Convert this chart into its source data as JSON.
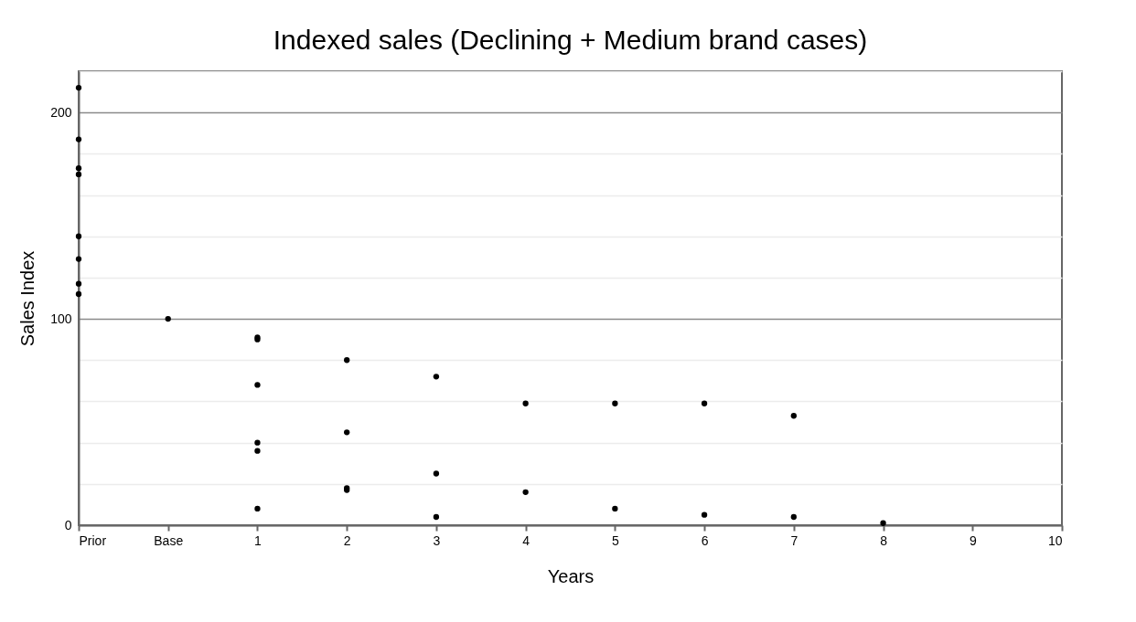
{
  "chart_data": {
    "type": "scatter",
    "title": "Indexed sales (Declining + Medium brand cases)",
    "xlabel": "Years",
    "ylabel": "Sales Index",
    "series": [
      {
        "color": "#000000",
        "x": [
          -1,
          -1,
          -1,
          -1,
          -1,
          -1,
          -1,
          -1,
          0,
          1,
          1,
          1,
          1,
          1,
          1,
          2,
          2,
          2,
          2,
          3,
          3,
          3,
          4,
          4,
          5,
          5,
          6,
          6,
          7,
          7,
          8
        ],
        "values": [
          212,
          187,
          173,
          170,
          140,
          129,
          117,
          112,
          100,
          91,
          90,
          68,
          40,
          36,
          8,
          80,
          45,
          18,
          17,
          72,
          25,
          4,
          59,
          16,
          59,
          8,
          59,
          5,
          53,
          4,
          1
        ]
      }
    ],
    "xlim": [
      -1,
      10
    ],
    "xticks": [
      {
        "value": -1,
        "label": "Prior"
      },
      {
        "value": 0,
        "label": "Base"
      },
      1,
      2,
      3,
      4,
      5,
      6,
      7,
      8,
      9,
      10
    ],
    "ylim": [
      0,
      220
    ],
    "yticks": [
      0,
      {
        "value": 20,
        "label": null
      },
      {
        "value": 40,
        "label": null
      },
      {
        "value": 60,
        "label": null
      },
      {
        "value": 80,
        "label": null
      },
      100,
      {
        "value": 120,
        "label": null
      },
      {
        "value": 140,
        "label": null
      },
      {
        "value": 160,
        "label": null
      },
      {
        "value": 180,
        "label": null
      },
      200,
      {
        "value": 220,
        "label": null
      }
    ],
    "grid": "y",
    "marker": "circle"
  }
}
